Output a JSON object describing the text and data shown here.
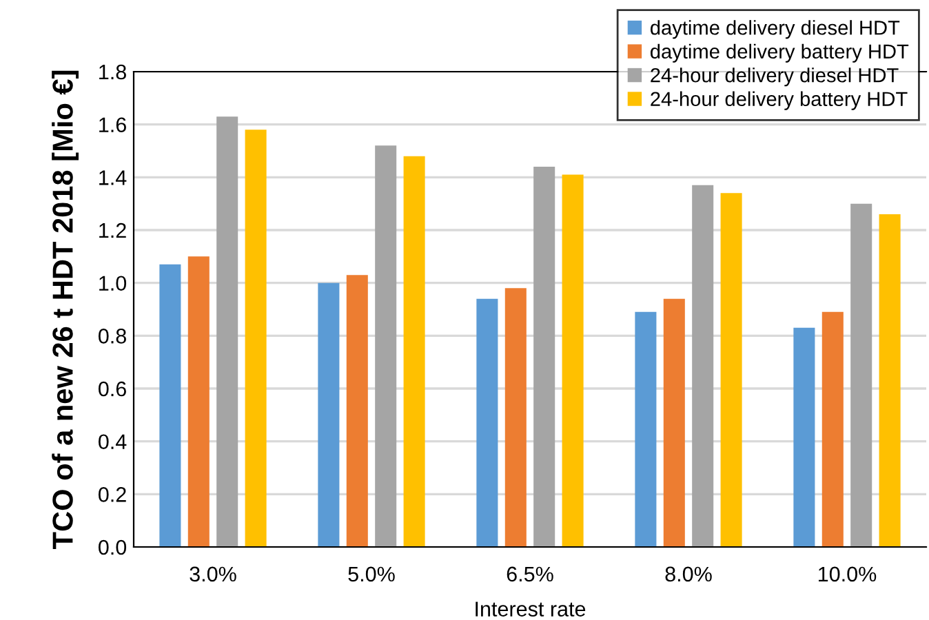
{
  "chart_data": {
    "type": "bar",
    "xlabel": "Interest rate",
    "ylabel": "TCO of a new 26 t HDT 2018 [Mio €]",
    "categories": [
      "3.0%",
      "5.0%",
      "6.5%",
      "8.0%",
      "10.0%"
    ],
    "series": [
      {
        "name": "daytime delivery diesel HDT",
        "color": "#5b9bd5",
        "values": [
          1.07,
          1.0,
          0.94,
          0.89,
          0.83
        ]
      },
      {
        "name": "daytime delivery battery HDT",
        "color": "#ed7d31",
        "values": [
          1.1,
          1.03,
          0.98,
          0.94,
          0.89
        ]
      },
      {
        "name": "24-hour delivery diesel HDT",
        "color": "#a5a5a5",
        "values": [
          1.63,
          1.52,
          1.44,
          1.37,
          1.3
        ]
      },
      {
        "name": "24-hour delivery battery HDT",
        "color": "#ffc000",
        "values": [
          1.58,
          1.48,
          1.41,
          1.34,
          1.26
        ]
      }
    ],
    "ylim": [
      0,
      1.8
    ],
    "yticks": [
      {
        "value": 0,
        "label": "0.0"
      },
      {
        "value": 0.2,
        "label": "0.2"
      },
      {
        "value": 0.4,
        "label": "0.4"
      },
      {
        "value": 0.6,
        "label": "0.6"
      },
      {
        "value": 0.8,
        "label": "0.8"
      },
      {
        "value": 1.0,
        "label": "1.0"
      },
      {
        "value": 1.2,
        "label": "1.2"
      },
      {
        "value": 1.4,
        "label": "1.4"
      },
      {
        "value": 1.6,
        "label": "1.6"
      },
      {
        "value": 1.8,
        "label": "1.8"
      }
    ],
    "grid": "y",
    "legend": "top right"
  }
}
